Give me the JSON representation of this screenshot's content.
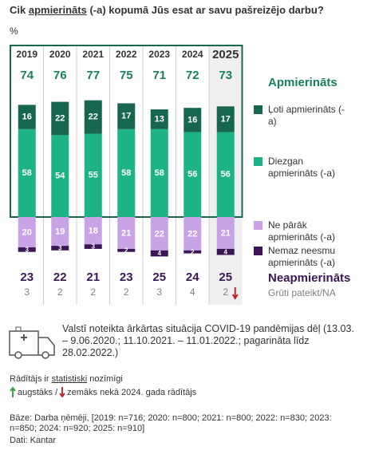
{
  "chart_data": {
    "type": "diverging_bar",
    "title_parts": [
      "Cik ",
      "apmierināts",
      " (-a) kopumā Jūs esat ar savu pašreizējo darbu?"
    ],
    "unit": "%",
    "categories": [
      "2019",
      "2020",
      "2021",
      "2022",
      "2023",
      "2024",
      "2025"
    ],
    "highlight": [
      false,
      false,
      false,
      false,
      false,
      false,
      true
    ],
    "series": [
      {
        "name": "Ļoti apmierināts (-a)",
        "color": "#17664f",
        "side": "positive",
        "values": [
          16,
          22,
          22,
          17,
          13,
          16,
          17
        ]
      },
      {
        "name": "Diezgan apmierināts (-a)",
        "color": "#1db386",
        "side": "positive",
        "values": [
          58,
          54,
          55,
          58,
          58,
          56,
          56
        ]
      },
      {
        "name": "Ne pārāk apmierināts (-a)",
        "color": "#c8a4e6",
        "side": "negative",
        "values": [
          20,
          19,
          18,
          21,
          22,
          22,
          21
        ]
      },
      {
        "name": "Nemaz neesmu apmierināts (-a)",
        "color": "#3b1656",
        "side": "negative",
        "values": [
          3,
          3,
          3,
          2,
          4,
          2,
          4
        ]
      }
    ],
    "satisfied_total": {
      "name": "Apmierināts",
      "color": "#17805f",
      "values": [
        74,
        76,
        77,
        75,
        71,
        72,
        73
      ]
    },
    "dissatisfied_total": {
      "name": "Neapmierināts",
      "color": "#3b1656",
      "values": [
        23,
        22,
        21,
        23,
        25,
        24,
        25
      ]
    },
    "no_answer": {
      "name": "Grūti pateikt/NA",
      "color": "#808080",
      "values": [
        3,
        2,
        2,
        2,
        3,
        4,
        2
      ],
      "significant_change": [
        null,
        null,
        null,
        null,
        null,
        null,
        "down"
      ]
    }
  },
  "notes": {
    "emergency": "Valstī noteikta ārkārtas situācija COVID-19 pandēmijas dēļ (13.03. – 9.06.2020.; 11.10.2021. – 11.01.2022.; pagarināta līdz 28.02.2022.)",
    "significance_parts": [
      "Rādītājs ir ",
      "statistiski",
      " nozīmīgi"
    ],
    "higher": "augstāks /",
    "lower": "zemāks nekā 2024. gada rādītājs",
    "base": "Bāze: Darba ņēmēji, [2019: n=716; 2020: n=800; 2021: n=800; 2022: n=830; 2023: n=850; 2024: n=920; 2025: n=910]",
    "source": "Dati: Kantar"
  }
}
